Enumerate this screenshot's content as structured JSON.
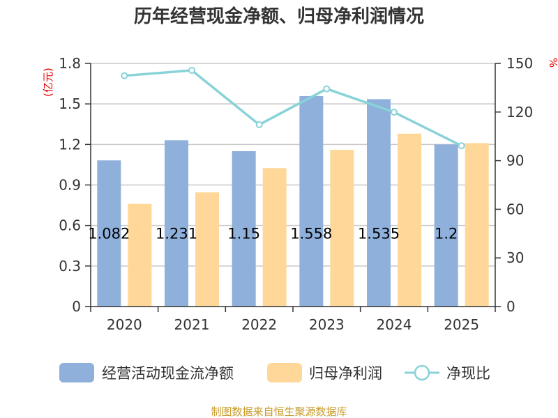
{
  "chart_data": {
    "type": "bar",
    "title": "历年经营现金净额、归母净利润情况",
    "categories": [
      "2020",
      "2021",
      "2022",
      "2023",
      "2024",
      "2025"
    ],
    "ylabel_left": "(亿元)",
    "ylabel_right": "%",
    "ylim_left": [
      0,
      1.8
    ],
    "yticks_left": [
      0,
      0.3,
      0.6,
      0.9,
      1.2,
      1.5,
      1.8
    ],
    "ytick_labels_left": [
      "0",
      "0.3",
      "0.6",
      "0.9",
      "1.2",
      "1.5",
      "1.8"
    ],
    "ylim_right": [
      0,
      150
    ],
    "yticks_right": [
      0,
      30,
      60,
      90,
      120,
      150
    ],
    "ytick_labels_right": [
      "0",
      "30",
      "60",
      "90",
      "120",
      "150"
    ],
    "grid": true,
    "series": [
      {
        "name": "经营活动现金流净额",
        "type": "bar",
        "axis": "left",
        "color": "#8eb0db",
        "values": [
          1.082,
          1.231,
          1.15,
          1.558,
          1.535,
          1.2
        ],
        "labels": [
          "1.082",
          "1.231",
          "1.15",
          "1.558",
          "1.535",
          "1.2"
        ]
      },
      {
        "name": "归母净利润",
        "type": "bar",
        "axis": "left",
        "color": "#ffd899",
        "values": [
          0.76,
          0.845,
          1.025,
          1.16,
          1.28,
          1.21
        ]
      },
      {
        "name": "净现比",
        "type": "line",
        "axis": "right",
        "color": "#88d3d8",
        "values": [
          142.4,
          145.7,
          112.2,
          134.3,
          119.9,
          99.2
        ]
      }
    ],
    "legend_position": "bottom",
    "source": "制图数据来自恒生聚源数据库"
  }
}
